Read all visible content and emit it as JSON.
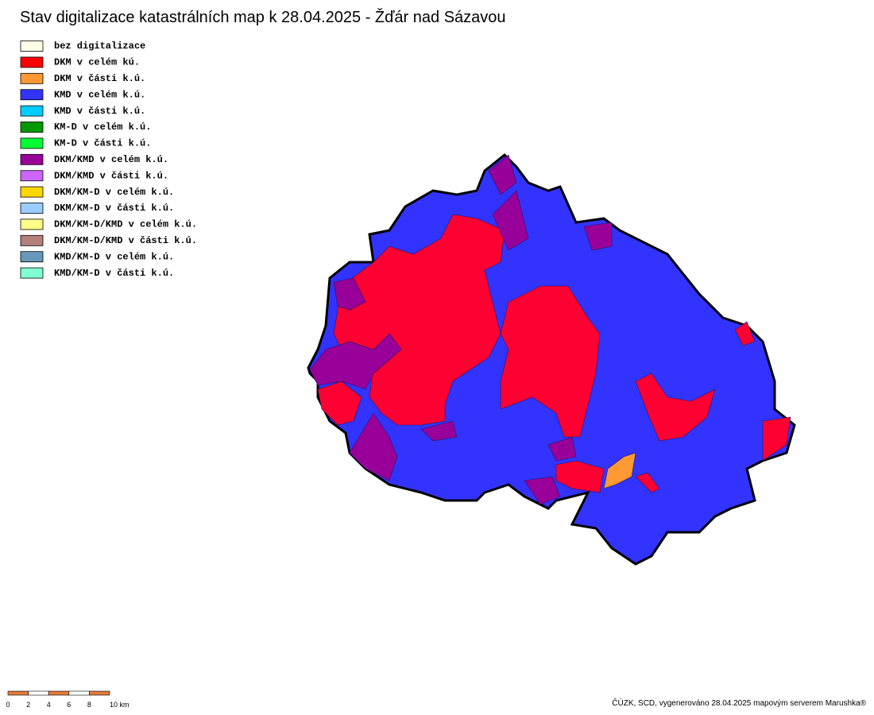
{
  "title": "Stav digitalizace katastrálních map k 28.04.2025 - Žďár nad Sázavou",
  "legend": [
    {
      "label": "bez digitalizace",
      "color": "#ffffe8"
    },
    {
      "label": "DKM v celém kú.",
      "color": "#ff0000"
    },
    {
      "label": "DKM v části k.ú.",
      "color": "#ff9933"
    },
    {
      "label": "KMD v celém k.ú.",
      "color": "#3333ff"
    },
    {
      "label": "KMD v části k.ú.",
      "color": "#00ccff"
    },
    {
      "label": "KM-D v celém k.ú.",
      "color": "#009900"
    },
    {
      "label": "KM-D v části k.ú.",
      "color": "#00ff33"
    },
    {
      "label": "DKM/KMD v celém k.ú.",
      "color": "#990099"
    },
    {
      "label": "DKM/KMD v části k.ú.",
      "color": "#cc66ff"
    },
    {
      "label": "DKM/KM-D v celém k.ú.",
      "color": "#ffd700"
    },
    {
      "label": "DKM/KM-D v části k.ú.",
      "color": "#99ccff"
    },
    {
      "label": "DKM/KM-D/KMD v celém k.ú.",
      "color": "#ffff88"
    },
    {
      "label": "DKM/KM-D/KMD v části k.ú.",
      "color": "#b3807a"
    },
    {
      "label": "KMD/KM-D v celém k.ú.",
      "color": "#6699bb"
    },
    {
      "label": "KMD/KM-D v části k.ú.",
      "color": "#80ffd4"
    }
  ],
  "scale": {
    "labels": [
      "0",
      "2",
      "4",
      "6",
      "8",
      "10 km"
    ]
  },
  "credit": "ČÚZK, SCD, vygenerováno 28.04.2025 mapovým serverem Marushka®"
}
